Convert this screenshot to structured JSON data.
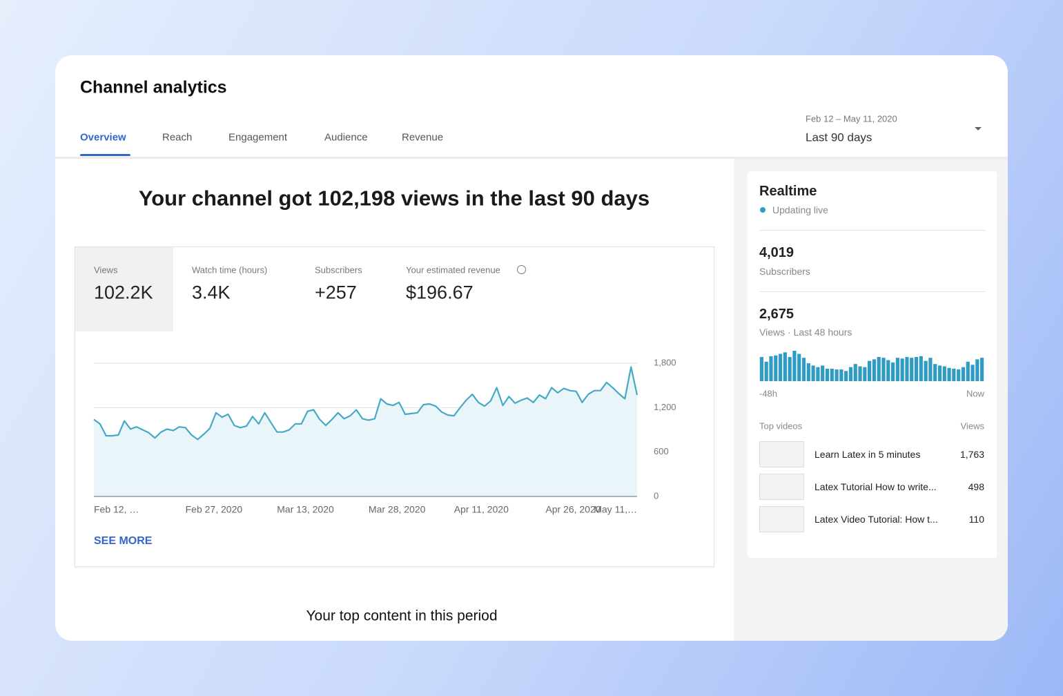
{
  "header": {
    "title": "Channel analytics"
  },
  "tabs": [
    "Overview",
    "Reach",
    "Engagement",
    "Audience",
    "Revenue"
  ],
  "date_range": {
    "range": "Feb 12 – May 11, 2020",
    "label": "Last 90 days"
  },
  "headline": "Your channel got 102,198 views in the last 90 days",
  "metrics": [
    {
      "label": "Views",
      "value": "102.2K"
    },
    {
      "label": "Watch time (hours)",
      "value": "3.4K"
    },
    {
      "label": "Subscribers",
      "value": "+257"
    },
    {
      "label": "Your estimated revenue",
      "value": "$196.67"
    }
  ],
  "see_more": "SEE MORE",
  "top_content": "Your top content in this period",
  "realtime": {
    "title": "Realtime",
    "status": "Updating live",
    "stats": [
      {
        "value": "4,019",
        "label": "Subscribers"
      },
      {
        "value": "2,675",
        "label": "Views · Last 48 hours"
      }
    ],
    "top_videos_header": "Top videos",
    "views_header": "Views",
    "videos": [
      {
        "title": "Learn Latex in 5 minutes",
        "views": "1,763"
      },
      {
        "title": "Latex Tutorial How to write...",
        "views": "498"
      },
      {
        "title": "Latex Video Tutorial: How t...",
        "views": "110"
      }
    ]
  },
  "chart_data": [
    {
      "type": "line",
      "color": "#45a9c4",
      "area_color": "#e9f5f9",
      "grid": true,
      "categories": [
        "Feb 12, …",
        null,
        null,
        null,
        null,
        null,
        null,
        null,
        null,
        null,
        null,
        null,
        null,
        null,
        null,
        "Feb 27, 2020",
        null,
        null,
        null,
        null,
        null,
        null,
        null,
        null,
        null,
        null,
        null,
        null,
        null,
        null,
        "Mar 13, 2020",
        null,
        null,
        null,
        null,
        null,
        null,
        null,
        null,
        null,
        null,
        null,
        null,
        null,
        null,
        "Mar 28, 2020",
        null,
        null,
        null,
        null,
        null,
        null,
        null,
        null,
        null,
        null,
        null,
        null,
        null,
        "Apr 11, 2020",
        null,
        null,
        null,
        null,
        null,
        null,
        null,
        null,
        null,
        null,
        null,
        null,
        null,
        null,
        "Apr 26, 2020",
        null,
        null,
        null,
        null,
        null,
        null,
        null,
        null,
        null,
        null,
        null,
        null,
        null,
        null,
        "May 11,…"
      ],
      "values": [
        1040,
        980,
        820,
        820,
        830,
        1020,
        910,
        940,
        900,
        860,
        790,
        870,
        910,
        890,
        940,
        930,
        830,
        770,
        840,
        920,
        1130,
        1070,
        1110,
        960,
        930,
        950,
        1080,
        980,
        1130,
        1000,
        870,
        870,
        900,
        980,
        980,
        1150,
        1170,
        1040,
        960,
        1040,
        1130,
        1050,
        1090,
        1170,
        1050,
        1030,
        1050,
        1320,
        1250,
        1230,
        1270,
        1110,
        1120,
        1130,
        1240,
        1250,
        1220,
        1140,
        1100,
        1090,
        1200,
        1300,
        1380,
        1270,
        1220,
        1290,
        1470,
        1230,
        1350,
        1260,
        1300,
        1330,
        1270,
        1370,
        1320,
        1470,
        1400,
        1460,
        1430,
        1420,
        1270,
        1380,
        1430,
        1430,
        1540,
        1470,
        1390,
        1320,
        1750,
        1370
      ],
      "ylim": [
        0,
        1800
      ],
      "yticks": [
        0,
        600,
        {
          "value": 1200,
          "label": "1,200"
        },
        {
          "value": 1800,
          "label": "1,800"
        }
      ]
    },
    {
      "type": "bar",
      "color": "#2f9dc3",
      "categories": [
        "-48h",
        null,
        null,
        null,
        null,
        null,
        null,
        null,
        null,
        null,
        null,
        null,
        null,
        null,
        null,
        null,
        null,
        null,
        null,
        null,
        null,
        null,
        null,
        null,
        null,
        null,
        null,
        null,
        null,
        null,
        null,
        null,
        null,
        null,
        null,
        null,
        null,
        null,
        null,
        null,
        null,
        null,
        null,
        null,
        null,
        null,
        null,
        "Now"
      ],
      "values": [
        62,
        50,
        64,
        66,
        70,
        74,
        62,
        78,
        70,
        60,
        46,
        40,
        36,
        40,
        32,
        32,
        30,
        30,
        26,
        36,
        44,
        38,
        36,
        52,
        56,
        62,
        60,
        54,
        48,
        60,
        58,
        62,
        60,
        62,
        64,
        52,
        60,
        44,
        40,
        38,
        34,
        32,
        30,
        36,
        50,
        42,
        56,
        60
      ]
    }
  ]
}
